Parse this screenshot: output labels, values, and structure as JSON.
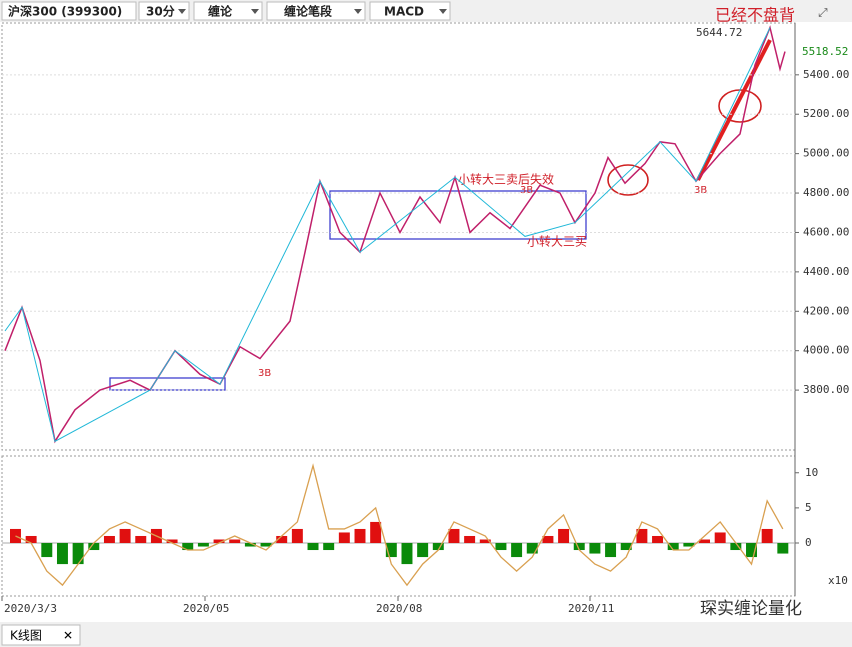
{
  "toolbar": [
    "沪深300 (399300)",
    "30分",
    "缠论",
    "缠论笔段",
    "MACD"
  ],
  "tab": "K线图",
  "watermark": "琛实缠论量化",
  "annotations": {
    "top": "已经不盘背",
    "high": "5644.72",
    "last": "5518.52",
    "sell": "小转大三卖后失效",
    "buy": "小转大三买",
    "b1": "3B",
    "b2": "3B",
    "b3": "3B",
    "unit": "x10"
  },
  "chart_data": [
    {
      "type": "line",
      "xlim": [
        0,
        793
      ],
      "xticks": [
        {
          "value": 0,
          "label": "2020/3/3"
        },
        {
          "value": 203,
          "label": "2020/05"
        },
        {
          "value": 396,
          "label": "2020/08"
        },
        {
          "value": 588,
          "label": "2020/11"
        }
      ],
      "ylim": [
        3496,
        5663
      ],
      "yticks": [
        {
          "value": 3800,
          "label": "3800.00"
        },
        {
          "value": 4000,
          "label": "4000.00"
        },
        {
          "value": 4200,
          "label": "4200.00"
        },
        {
          "value": 4400,
          "label": "4400.00"
        },
        {
          "value": 4600,
          "label": "4600.00"
        },
        {
          "value": 4800,
          "label": "4800.00"
        },
        {
          "value": 5000,
          "label": "5000.00"
        },
        {
          "value": 5200,
          "label": "5200.00"
        },
        {
          "value": 5400,
          "label": "5400.00"
        }
      ],
      "grid": true,
      "series": [
        {
          "color": "#c0206a",
          "x": [
            3,
            20,
            38,
            53,
            73,
            98,
            128,
            148,
            173,
            198,
            218,
            238,
            258,
            288,
            303,
            318,
            338,
            358,
            378,
            398,
            418,
            438,
            453,
            468,
            488,
            508,
            538,
            558,
            573,
            593,
            606,
            623,
            643,
            658,
            673,
            694,
            718,
            738,
            753,
            768,
            778,
            783
          ],
          "values": [
            4000,
            4220,
            3950,
            3540,
            3700,
            3800,
            3850,
            3800,
            4000,
            3880,
            3830,
            4020,
            3960,
            4150,
            4500,
            4860,
            4600,
            4500,
            4800,
            4600,
            4780,
            4650,
            4880,
            4600,
            4700,
            4620,
            4840,
            4800,
            4650,
            4800,
            4980,
            4850,
            4950,
            5060,
            5050,
            4860,
            5000,
            5100,
            5450,
            5640,
            5430,
            5518
          ]
        },
        {
          "color": "#20b8d8",
          "x": [
            3,
            20,
            53,
            148,
            173,
            218,
            318,
            358,
            453,
            523,
            573,
            658,
            694,
            768
          ],
          "values": [
            4100,
            4220,
            3540,
            3800,
            4000,
            3830,
            4860,
            4500,
            4880,
            4580,
            4650,
            5060,
            4860,
            5640
          ]
        }
      ]
    },
    {
      "type": "bar",
      "ylim": [
        -7.4,
        12.1
      ],
      "yticks": [
        10,
        5,
        0
      ],
      "colors": {
        "up": "#e01010",
        "down": "#0a8a0a"
      },
      "values": [
        2,
        1,
        -2,
        -3,
        -3,
        -1,
        1,
        2,
        1,
        2,
        0.5,
        -1,
        -0.5,
        0.5,
        0.5,
        -0.5,
        -0.5,
        1,
        2,
        -1,
        -1,
        1.5,
        2,
        3,
        -2,
        -3,
        -2,
        -1,
        2,
        1,
        0.5,
        -1,
        -2,
        -1.5,
        1,
        2,
        -1,
        -1.5,
        -2,
        -1,
        2,
        1,
        -1,
        -0.5,
        0.5,
        1.5,
        -1,
        -2,
        2,
        -1.5
      ],
      "series": [
        {
          "color": "#d9a050",
          "values": [
            1,
            0,
            -4,
            -6,
            -3,
            0,
            2,
            3,
            2,
            1,
            0,
            -1,
            -1,
            0,
            1,
            0,
            -1,
            1,
            3,
            11,
            2,
            2,
            3,
            5,
            -3,
            -6,
            -3,
            -1,
            3,
            2,
            1,
            -2,
            -4,
            -2,
            2,
            4,
            -1,
            -3,
            -4,
            -2,
            3,
            2,
            -1,
            -1,
            1,
            3,
            0,
            -3,
            6,
            2
          ]
        }
      ]
    }
  ]
}
